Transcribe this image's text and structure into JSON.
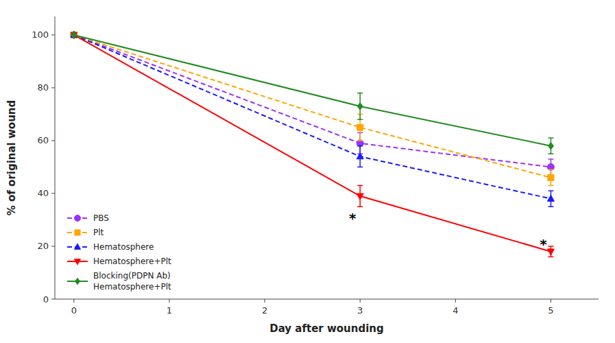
{
  "chart_data": {
    "type": "line",
    "x": [
      0,
      3,
      5
    ],
    "series": [
      {
        "name": "PBS",
        "color": "#9B30FF",
        "values": [
          100,
          59,
          50
        ],
        "yerr": [
          0,
          4,
          3
        ],
        "line_style": "dashed",
        "marker": "circle"
      },
      {
        "name": "Plt",
        "color": "#FFA500",
        "values": [
          100,
          65,
          46
        ],
        "yerr": [
          0,
          5,
          3
        ],
        "line_style": "dashed",
        "marker": "square"
      },
      {
        "name": "Hematosphere",
        "color": "#1a1aff",
        "values": [
          100,
          54,
          38
        ],
        "yerr": [
          0,
          4,
          3
        ],
        "line_style": "dashed",
        "marker": "triangle-up"
      },
      {
        "name": "Hematosphere+Plt",
        "color": "#FF0000",
        "values": [
          100,
          39,
          18
        ],
        "yerr": [
          0,
          4,
          2
        ],
        "line_style": "solid",
        "marker": "triangle-down"
      },
      {
        "name": "Blocking(PDPN Ab)\nHematosphere+Plt",
        "color": "#228B22",
        "values": [
          100,
          73,
          58
        ],
        "yerr": [
          0,
          5,
          3
        ],
        "line_style": "solid",
        "marker": "diamond"
      }
    ],
    "x_label": "Day after wounding",
    "y_label": "% of original wound",
    "xlim": [
      -0.2,
      5.5
    ],
    "ylim": [
      0,
      107
    ],
    "xticks": [
      0,
      1,
      2,
      3,
      4,
      5
    ],
    "yticks": [
      0,
      20,
      40,
      60,
      80,
      100
    ],
    "annotations": [
      {
        "text": "*",
        "x": 3,
        "y": 32
      },
      {
        "text": "*",
        "x": 5,
        "y": 22
      }
    ],
    "legend": "lower left",
    "grid": false
  }
}
